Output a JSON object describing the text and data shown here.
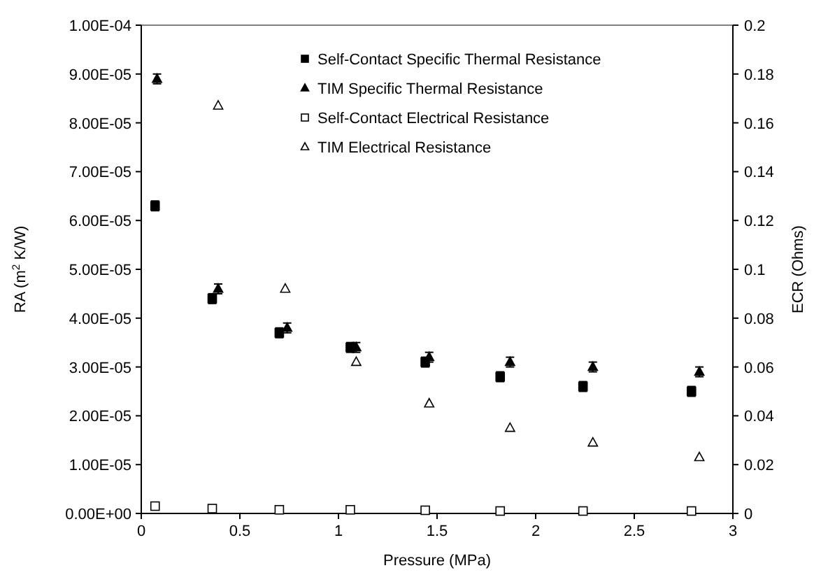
{
  "chart_data": {
    "type": "scatter",
    "xlabel": "Pressure (MPa)",
    "ylabel": "RA (m$^{2}$ K/W)",
    "y2label": "ECR (Ohms)",
    "legend": "top right",
    "grid": false,
    "xlim": [
      0,
      3
    ],
    "xticks": [
      0,
      0.5,
      1,
      1.5,
      2,
      2.5,
      3
    ],
    "ylim": [
      0,
      0.0001
    ],
    "yticks": [
      {
        "value": 0,
        "label": "0.00E+00"
      },
      {
        "value": 1e-05,
        "label": "1.00E-05"
      },
      {
        "value": 2e-05,
        "label": "2.00E-05"
      },
      {
        "value": 3e-05,
        "label": "3.00E-05"
      },
      {
        "value": 4e-05,
        "label": "4.00E-05"
      },
      {
        "value": 5e-05,
        "label": "5.00E-05"
      },
      {
        "value": 6e-05,
        "label": "6.00E-05"
      },
      {
        "value": 7e-05,
        "label": "7.00E-05"
      },
      {
        "value": 8e-05,
        "label": "8.00E-05"
      },
      {
        "value": 9e-05,
        "label": "9.00E-05"
      },
      {
        "value": 0.0001,
        "label": "1.00E-04"
      }
    ],
    "y2lim": [
      0,
      0.2
    ],
    "y2ticks": [
      0,
      0.02,
      0.04,
      0.06,
      0.08,
      0.1,
      0.12,
      0.14,
      0.16,
      0.18,
      0.2
    ],
    "series": [
      {
        "name": "Self-Contact Specific Thermal Resistance",
        "color": "#000000",
        "marker": "square",
        "x": [
          0.07,
          0.36,
          0.7,
          1.06,
          1.44,
          1.82,
          2.24,
          2.79
        ],
        "values": [
          6.3e-05,
          4.4e-05,
          3.7e-05,
          3.4e-05,
          3.1e-05,
          2.8e-05,
          2.6e-05,
          2.5e-05
        ],
        "errors": [
          1e-06,
          1e-06,
          1e-06,
          1e-06,
          1e-06,
          1e-06,
          1e-06,
          1e-06
        ]
      },
      {
        "name": "TIM Specific Thermal Resistance",
        "color": "#000000",
        "marker": "triangle",
        "x": [
          0.08,
          0.39,
          0.74,
          1.09,
          1.46,
          1.87,
          2.29,
          2.83
        ],
        "values": [
          8.9e-05,
          4.6e-05,
          3.8e-05,
          3.4e-05,
          3.2e-05,
          3.1e-05,
          3e-05,
          2.9e-05
        ],
        "errors": [
          1e-06,
          1e-06,
          1e-06,
          1e-06,
          1e-06,
          1e-06,
          1e-06,
          1e-06
        ]
      },
      {
        "name": "Self-Contact Electrical Resistance",
        "color": "#ffffff",
        "marker": "square",
        "axis": "y2",
        "x": [
          0.07,
          0.36,
          0.7,
          1.06,
          1.44,
          1.82,
          2.24,
          2.79
        ],
        "values": [
          0.003,
          0.002,
          0.0015,
          0.0015,
          0.0013,
          0.001,
          0.001,
          0.001
        ]
      },
      {
        "name": "TIM Electrical Resistance",
        "color": "#ffffff",
        "marker": "triangle",
        "axis": "y2",
        "x": [
          0.39,
          0.73,
          1.09,
          1.46,
          1.87,
          2.29,
          2.83
        ],
        "values": [
          0.167,
          0.092,
          0.062,
          0.045,
          0.035,
          0.029,
          0.023
        ]
      }
    ]
  }
}
